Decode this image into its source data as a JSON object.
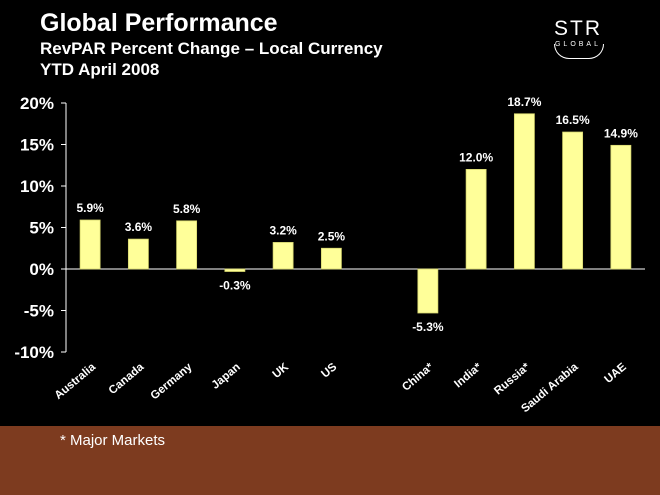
{
  "header": {
    "title": "Global Performance",
    "subtitle": "RevPAR Percent Change – Local Currency",
    "period": "YTD April 2008"
  },
  "logo": {
    "main": "STR",
    "sub": "GLOBAL"
  },
  "footer": {
    "note": "* Major Markets"
  },
  "colors": {
    "bar": "#ffff99",
    "bar_stroke": "#d8d870",
    "background": "#000000",
    "footer": "#7d3b1f",
    "axis": "#ffffff"
  },
  "chart_data": {
    "type": "bar",
    "title": "RevPAR Percent Change – Local Currency",
    "categories": [
      "Australia",
      "Canada",
      "Germany",
      "Japan",
      "UK",
      "US",
      "",
      "China*",
      "India*",
      "Russia*",
      "Saudi Arabia",
      "UAE"
    ],
    "values": [
      5.9,
      3.6,
      5.8,
      -0.3,
      3.2,
      2.5,
      null,
      -5.3,
      12.0,
      18.7,
      16.5,
      14.9
    ],
    "value_labels": [
      "5.9%",
      "3.6%",
      "5.8%",
      "-0.3%",
      "3.2%",
      "2.5%",
      "",
      "-5.3%",
      "12.0%",
      "18.7%",
      "16.5%",
      "14.9%"
    ],
    "ylim": [
      -10,
      20
    ],
    "yticks": [
      20,
      15,
      10,
      5,
      0,
      -5,
      -10
    ],
    "ytick_labels": [
      "20%",
      "15%",
      "10%",
      "5%",
      "0%",
      "-5%",
      "-10%"
    ],
    "xlabel": "",
    "ylabel": "",
    "grid": false,
    "legend": "none"
  }
}
